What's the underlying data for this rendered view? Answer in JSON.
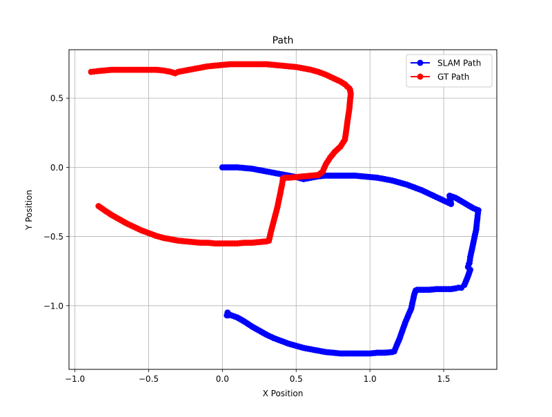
{
  "chart_data": {
    "type": "line",
    "title": "Path",
    "xlabel": "X Position",
    "ylabel": "Y Position",
    "xlim": [
      -1.04,
      1.86
    ],
    "ylim": [
      -1.46,
      0.85
    ],
    "xticks": [
      -1.0,
      -0.5,
      0.0,
      0.5,
      1.0,
      1.5
    ],
    "yticks": [
      -1.0,
      -0.5,
      0.0,
      0.5
    ],
    "xtick_labels": [
      "−1.0",
      "−0.5",
      "0.0",
      "0.5",
      "1.0",
      "1.5"
    ],
    "ytick_labels": [
      "−1.0",
      "−0.5",
      "0.0",
      "0.5"
    ],
    "grid": true,
    "legend_position": "top-right",
    "series": [
      {
        "name": "SLAM Path",
        "color": "#0000ff",
        "marker": "circle",
        "x": [
          0.0,
          0.05,
          0.1,
          0.15,
          0.2,
          0.25,
          0.3,
          0.35,
          0.4,
          0.45,
          0.5,
          0.55,
          0.6,
          0.65,
          0.7,
          0.75,
          0.8,
          0.85,
          0.9,
          0.95,
          1.0,
          1.05,
          1.1,
          1.15,
          1.2,
          1.25,
          1.3,
          1.35,
          1.4,
          1.45,
          1.5,
          1.55,
          1.54,
          1.58,
          1.62,
          1.66,
          1.7,
          1.735,
          1.73,
          1.725,
          1.72,
          1.71,
          1.7,
          1.69,
          1.68,
          1.675,
          1.67,
          1.665,
          1.68,
          1.66,
          1.64,
          1.62,
          1.6,
          1.58,
          1.55,
          1.5,
          1.45,
          1.4,
          1.35,
          1.32,
          1.31,
          1.3,
          1.29,
          1.28,
          1.26,
          1.24,
          1.22,
          1.2,
          1.18,
          1.165,
          1.15,
          1.1,
          1.05,
          1.0,
          0.95,
          0.9,
          0.85,
          0.8,
          0.75,
          0.7,
          0.65,
          0.6,
          0.55,
          0.5,
          0.45,
          0.4,
          0.35,
          0.3,
          0.25,
          0.2,
          0.15,
          0.1,
          0.05,
          0.035,
          0.04,
          0.03
        ],
        "y": [
          0.0,
          0.0,
          0.0,
          -0.005,
          -0.01,
          -0.02,
          -0.03,
          -0.04,
          -0.05,
          -0.06,
          -0.07,
          -0.085,
          -0.075,
          -0.065,
          -0.06,
          -0.06,
          -0.06,
          -0.06,
          -0.06,
          -0.065,
          -0.07,
          -0.075,
          -0.085,
          -0.095,
          -0.11,
          -0.125,
          -0.145,
          -0.165,
          -0.19,
          -0.215,
          -0.24,
          -0.265,
          -0.205,
          -0.22,
          -0.245,
          -0.27,
          -0.295,
          -0.31,
          -0.35,
          -0.4,
          -0.45,
          -0.5,
          -0.55,
          -0.6,
          -0.65,
          -0.69,
          -0.7,
          -0.72,
          -0.74,
          -0.8,
          -0.85,
          -0.87,
          -0.87,
          -0.875,
          -0.88,
          -0.88,
          -0.88,
          -0.885,
          -0.885,
          -0.885,
          -0.89,
          -0.92,
          -0.97,
          -1.02,
          -1.07,
          -1.12,
          -1.18,
          -1.24,
          -1.29,
          -1.33,
          -1.335,
          -1.34,
          -1.34,
          -1.345,
          -1.345,
          -1.345,
          -1.345,
          -1.345,
          -1.34,
          -1.335,
          -1.325,
          -1.315,
          -1.305,
          -1.29,
          -1.275,
          -1.255,
          -1.235,
          -1.21,
          -1.18,
          -1.15,
          -1.115,
          -1.085,
          -1.065,
          -1.05,
          -1.07,
          -1.07
        ]
      },
      {
        "name": "GT Path",
        "color": "#ff0000",
        "marker": "circle",
        "x": [
          -0.84,
          -0.8,
          -0.75,
          -0.7,
          -0.65,
          -0.6,
          -0.55,
          -0.5,
          -0.45,
          -0.4,
          -0.35,
          -0.3,
          -0.25,
          -0.2,
          -0.15,
          -0.1,
          -0.05,
          0.0,
          0.05,
          0.1,
          0.15,
          0.2,
          0.25,
          0.3,
          0.315,
          0.33,
          0.35,
          0.37,
          0.39,
          0.405,
          0.41,
          0.42,
          0.45,
          0.5,
          0.55,
          0.6,
          0.65,
          0.68,
          0.7,
          0.73,
          0.76,
          0.8,
          0.83,
          0.84,
          0.85,
          0.86,
          0.865,
          0.87,
          0.865,
          0.86,
          0.83,
          0.8,
          0.75,
          0.7,
          0.65,
          0.6,
          0.55,
          0.5,
          0.45,
          0.4,
          0.35,
          0.3,
          0.25,
          0.2,
          0.15,
          0.1,
          0.05,
          0.0,
          -0.05,
          -0.1,
          -0.15,
          -0.2,
          -0.25,
          -0.3,
          -0.32,
          -0.35,
          -0.4,
          -0.45,
          -0.5,
          -0.55,
          -0.6,
          -0.65,
          -0.7,
          -0.75,
          -0.8,
          -0.85,
          -0.89
        ],
        "y": [
          -0.28,
          -0.31,
          -0.345,
          -0.375,
          -0.405,
          -0.43,
          -0.455,
          -0.475,
          -0.495,
          -0.51,
          -0.52,
          -0.53,
          -0.535,
          -0.54,
          -0.545,
          -0.545,
          -0.55,
          -0.55,
          -0.55,
          -0.55,
          -0.545,
          -0.545,
          -0.54,
          -0.535,
          -0.53,
          -0.46,
          -0.38,
          -0.3,
          -0.2,
          -0.12,
          -0.08,
          -0.075,
          -0.075,
          -0.07,
          -0.065,
          -0.06,
          -0.055,
          -0.03,
          0.02,
          0.07,
          0.11,
          0.15,
          0.2,
          0.27,
          0.35,
          0.42,
          0.48,
          0.53,
          0.56,
          0.57,
          0.6,
          0.62,
          0.645,
          0.67,
          0.69,
          0.705,
          0.715,
          0.725,
          0.73,
          0.735,
          0.74,
          0.745,
          0.745,
          0.745,
          0.745,
          0.745,
          0.745,
          0.74,
          0.735,
          0.73,
          0.72,
          0.71,
          0.7,
          0.69,
          0.68,
          0.69,
          0.7,
          0.705,
          0.705,
          0.705,
          0.705,
          0.705,
          0.705,
          0.705,
          0.7,
          0.695,
          0.69
        ]
      }
    ]
  }
}
